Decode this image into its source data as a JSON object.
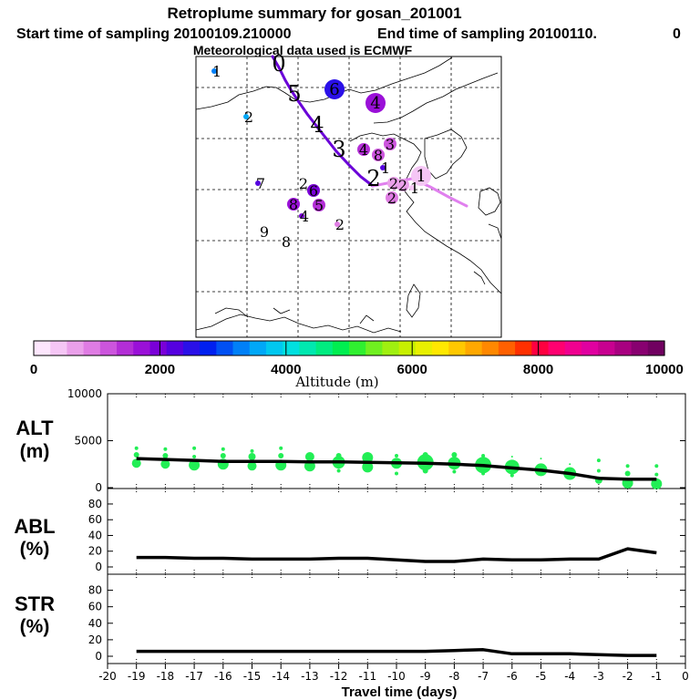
{
  "title": "Retroplume summary for gosan_201001",
  "start_text": "Start time of sampling 20100109.210000",
  "end_text": "End time of sampling 20100110.",
  "end_suffix": "0",
  "met_text": "Meteorological data used is ECMWF",
  "colorbar": {
    "label": "Altitude (m)",
    "ticks": [
      "0",
      "2000",
      "4000",
      "6000",
      "8000",
      "10000"
    ],
    "colors": [
      "#fde6fd",
      "#f5c6f5",
      "#eaa0ea",
      "#df7ce3",
      "#cc55dd",
      "#b32ed6",
      "#9a10d8",
      "#7a00d8",
      "#5500e0",
      "#2a10e8",
      "#0020f0",
      "#0050f4",
      "#0080f8",
      "#00a8f8",
      "#00c8f0",
      "#00e0e0",
      "#00e8b0",
      "#00ec80",
      "#00ee50",
      "#30f030",
      "#70f020",
      "#a0f010",
      "#c8f000",
      "#e8f000",
      "#ffe800",
      "#ffc800",
      "#ffa800",
      "#ff8800",
      "#ff6000",
      "#ff3000",
      "#ff0040",
      "#ff0070",
      "#f00090",
      "#e000a0",
      "#c80090",
      "#a80080",
      "#880070",
      "#700060"
    ]
  },
  "map": {
    "markers": [
      {
        "label": "1",
        "size": "small",
        "color": "#0080f8"
      },
      {
        "label": "2",
        "size": "small",
        "color": "#00a8f8"
      },
      {
        "label": "6",
        "size": "large",
        "color": "#2a10e8"
      },
      {
        "label": "4",
        "size": "large",
        "color": "#9a10d8"
      },
      {
        "label": "4",
        "size": "medium",
        "color": "#b32ed6"
      },
      {
        "label": "3",
        "size": "medium",
        "color": "#cc55dd"
      },
      {
        "label": "8",
        "size": "medium",
        "color": "#cc55dd"
      },
      {
        "label": "7",
        "size": "small",
        "color": "#5500e0"
      },
      {
        "label": "2",
        "size": "none",
        "color": ""
      },
      {
        "label": "6",
        "size": "medium",
        "color": "#7a00d8"
      },
      {
        "label": "8",
        "size": "medium",
        "color": "#9a10d8"
      },
      {
        "label": "5",
        "size": "medium",
        "color": "#b32ed6"
      },
      {
        "label": "4",
        "size": "small",
        "color": "#7a00d8"
      },
      {
        "label": "2",
        "size": "small",
        "color": "#df7ce3"
      },
      {
        "label": "9",
        "size": "none",
        "color": ""
      },
      {
        "label": "8",
        "size": "none",
        "color": ""
      },
      {
        "label": "1",
        "size": "small",
        "color": "#5500e0"
      },
      {
        "label": "1",
        "size": "large",
        "color": "#f5c6f5"
      },
      {
        "label": "2",
        "size": "medium",
        "color": "#eaa0ea"
      },
      {
        "label": "2",
        "size": "medium",
        "color": "#eaa0ea"
      },
      {
        "label": "2",
        "size": "medium",
        "color": "#df7ce3"
      },
      {
        "label": "1",
        "size": "small",
        "color": "#f5c6f5"
      }
    ],
    "track_labels": [
      "0",
      "5",
      "4",
      "3",
      "2"
    ]
  },
  "chart_data": [
    {
      "type": "line",
      "panel": "ALT",
      "ylabel": "ALT",
      "yunit": "(m)",
      "xlabel": "Travel time (days)",
      "xlim": [
        -20,
        0
      ],
      "ylim": [
        0,
        10000
      ],
      "yticks": [
        "0",
        "5000",
        "10000"
      ],
      "series": [
        {
          "name": "median altitude",
          "x": [
            -19,
            -18,
            -17,
            -16,
            -15,
            -14,
            -13,
            -12,
            -11,
            -10,
            -9,
            -8,
            -7,
            -6,
            -5,
            -4,
            -3,
            -2,
            -1
          ],
          "values": [
            3100,
            3000,
            2900,
            2800,
            2800,
            2800,
            2750,
            2750,
            2700,
            2650,
            2600,
            2500,
            2350,
            2100,
            1850,
            1500,
            1000,
            900,
            900
          ]
        }
      ],
      "scatter": [
        {
          "x": -19,
          "y": 2600,
          "s": 5
        },
        {
          "x": -19,
          "y": 3500,
          "s": 3
        },
        {
          "x": -19,
          "y": 4200,
          "s": 2
        },
        {
          "x": -18,
          "y": 2500,
          "s": 5
        },
        {
          "x": -18,
          "y": 3400,
          "s": 3
        },
        {
          "x": -18,
          "y": 4100,
          "s": 2
        },
        {
          "x": -17,
          "y": 2400,
          "s": 6
        },
        {
          "x": -17,
          "y": 3300,
          "s": 2
        },
        {
          "x": -17,
          "y": 4200,
          "s": 2
        },
        {
          "x": -16,
          "y": 2500,
          "s": 6
        },
        {
          "x": -16,
          "y": 3400,
          "s": 3
        },
        {
          "x": -16,
          "y": 4100,
          "s": 2
        },
        {
          "x": -15,
          "y": 2300,
          "s": 5
        },
        {
          "x": -15,
          "y": 3300,
          "s": 4
        },
        {
          "x": -15,
          "y": 3900,
          "s": 2
        },
        {
          "x": -14,
          "y": 2400,
          "s": 6
        },
        {
          "x": -14,
          "y": 3400,
          "s": 3
        },
        {
          "x": -14,
          "y": 4200,
          "s": 2
        },
        {
          "x": -13,
          "y": 2300,
          "s": 6
        },
        {
          "x": -13,
          "y": 3300,
          "s": 5
        },
        {
          "x": -12,
          "y": 2700,
          "s": 7
        },
        {
          "x": -12,
          "y": 3400,
          "s": 3
        },
        {
          "x": -12,
          "y": 1800,
          "s": 2
        },
        {
          "x": -11,
          "y": 2200,
          "s": 6
        },
        {
          "x": -11,
          "y": 3200,
          "s": 6
        },
        {
          "x": -10,
          "y": 2600,
          "s": 6
        },
        {
          "x": -10,
          "y": 1500,
          "s": 2
        },
        {
          "x": -10,
          "y": 3400,
          "s": 2
        },
        {
          "x": -9,
          "y": 2700,
          "s": 9
        },
        {
          "x": -9,
          "y": 1800,
          "s": 3
        },
        {
          "x": -9,
          "y": 3500,
          "s": 3
        },
        {
          "x": -8,
          "y": 2600,
          "s": 7
        },
        {
          "x": -8,
          "y": 1700,
          "s": 2
        },
        {
          "x": -8,
          "y": 3500,
          "s": 3
        },
        {
          "x": -7,
          "y": 2400,
          "s": 9
        },
        {
          "x": -7,
          "y": 3400,
          "s": 2
        },
        {
          "x": -7,
          "y": 1500,
          "s": 2
        },
        {
          "x": -6,
          "y": 2200,
          "s": 8
        },
        {
          "x": -6,
          "y": 3300,
          "s": 1
        },
        {
          "x": -6,
          "y": 1300,
          "s": 2
        },
        {
          "x": -5,
          "y": 1900,
          "s": 7
        },
        {
          "x": -5,
          "y": 3100,
          "s": 1
        },
        {
          "x": -4,
          "y": 1500,
          "s": 7
        },
        {
          "x": -4,
          "y": 2500,
          "s": 1
        },
        {
          "x": -3,
          "y": 800,
          "s": 4
        },
        {
          "x": -3,
          "y": 1800,
          "s": 2
        },
        {
          "x": -3,
          "y": 2900,
          "s": 2
        },
        {
          "x": -2,
          "y": 500,
          "s": 6
        },
        {
          "x": -2,
          "y": 1500,
          "s": 3
        },
        {
          "x": -2,
          "y": 2300,
          "s": 2
        },
        {
          "x": -1,
          "y": 400,
          "s": 6
        },
        {
          "x": -1,
          "y": 1400,
          "s": 2
        },
        {
          "x": -1,
          "y": 2300,
          "s": 2
        }
      ]
    },
    {
      "type": "line",
      "panel": "ABL",
      "ylabel": "ABL",
      "yunit": "(%)",
      "xlim": [
        -20,
        0
      ],
      "ylim": [
        0,
        95
      ],
      "yticks": [
        "0",
        "20",
        "40",
        "60",
        "80"
      ],
      "series": [
        {
          "name": "fraction in ABL",
          "x": [
            -19,
            -18,
            -17,
            -16,
            -15,
            -14,
            -13,
            -12,
            -11,
            -10,
            -9,
            -8,
            -7,
            -6,
            -5,
            -4,
            -3,
            -2,
            -1
          ],
          "values": [
            12,
            12,
            11,
            11,
            10,
            10,
            10,
            11,
            11,
            9,
            7,
            7,
            10,
            9,
            9,
            10,
            10,
            23,
            18
          ]
        }
      ]
    },
    {
      "type": "line",
      "panel": "STR",
      "ylabel": "STR",
      "yunit": "(%)",
      "xlabel": "Travel time (days)",
      "xlim": [
        -20,
        0
      ],
      "ylim": [
        0,
        95
      ],
      "xticks": [
        "-20",
        "-19",
        "-18",
        "-17",
        "-16",
        "-15",
        "-14",
        "-13",
        "-12",
        "-11",
        "-10",
        "-9",
        "-8",
        "-7",
        "-6",
        "-5",
        "-4",
        "-3",
        "-2",
        "-1",
        "0"
      ],
      "yticks": [
        "0",
        "20",
        "40",
        "60",
        "80"
      ],
      "series": [
        {
          "name": "fraction in stratosphere",
          "x": [
            -19,
            -18,
            -17,
            -16,
            -15,
            -14,
            -13,
            -12,
            -11,
            -10,
            -9,
            -8,
            -7,
            -6,
            -5,
            -4,
            -3,
            -2,
            -1
          ],
          "values": [
            6,
            6,
            6,
            6,
            6,
            6,
            6,
            6,
            6,
            6,
            6,
            7,
            8,
            3,
            3,
            3,
            2,
            1,
            1
          ]
        }
      ]
    }
  ]
}
